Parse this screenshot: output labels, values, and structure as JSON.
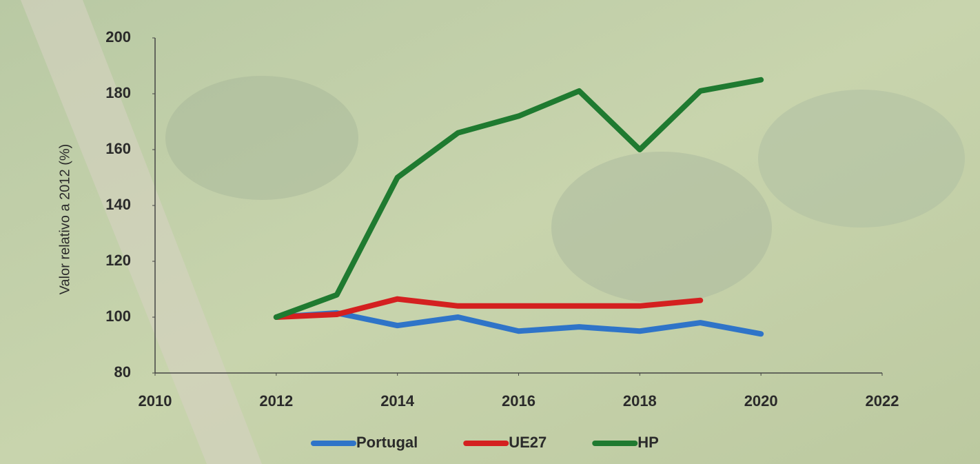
{
  "chart_data": {
    "type": "line",
    "y_label": "Valor relativo a 2012 (%)",
    "x": [
      2012,
      2013,
      2014,
      2015,
      2016,
      2017,
      2018,
      2019,
      2020
    ],
    "series": [
      {
        "name": "Portugal",
        "color": "#2f74c8",
        "values": [
          100,
          101.5,
          97,
          100,
          95,
          96.5,
          95,
          98,
          94
        ]
      },
      {
        "name": "UE27",
        "color": "#d42020",
        "values": [
          100,
          101,
          106.5,
          104,
          104,
          104,
          104,
          106,
          null
        ]
      },
      {
        "name": "HP",
        "color": "#1f7a30",
        "values": [
          100,
          108,
          150,
          166,
          172,
          181,
          160,
          181,
          185
        ]
      }
    ],
    "xlim": [
      2010,
      2022
    ],
    "xticks": [
      2010,
      2012,
      2014,
      2016,
      2018,
      2020,
      2022
    ],
    "ylim": [
      80,
      200
    ],
    "yticks": [
      80,
      100,
      120,
      140,
      160,
      180,
      200
    ],
    "grid": false,
    "legend": "bottom"
  }
}
